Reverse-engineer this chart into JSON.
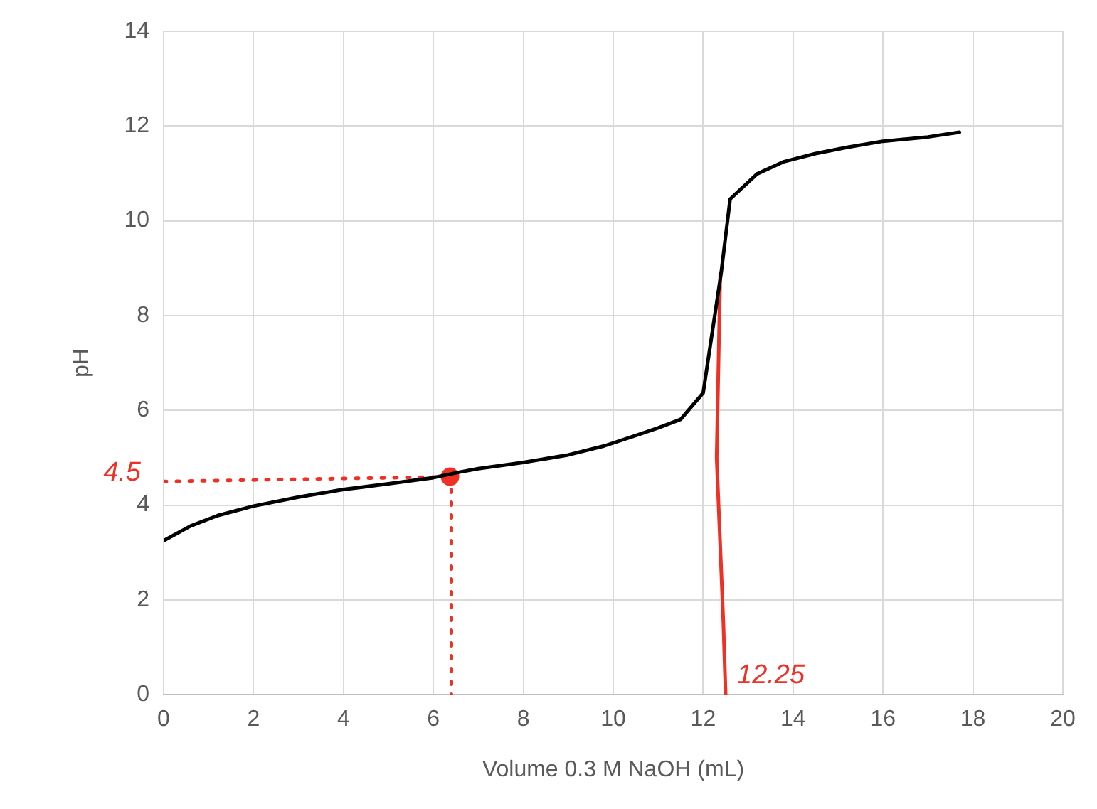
{
  "chart_data": {
    "type": "line",
    "xlabel": "Volume 0.3 M NaOH (mL)",
    "ylabel": "pH",
    "xlim": [
      0,
      20
    ],
    "xticks": [
      0,
      2,
      4,
      6,
      8,
      10,
      12,
      14,
      16,
      18,
      20
    ],
    "ylim": [
      0,
      14
    ],
    "yticks": [
      0,
      2,
      4,
      6,
      8,
      10,
      12,
      14
    ],
    "grid": true,
    "legend": false,
    "series": [
      {
        "type": "line",
        "color": "#000000",
        "line_style": "solid",
        "marker": "none",
        "x": [
          0,
          0.6,
          1.2,
          2,
          3,
          4,
          5,
          6,
          6.6,
          7,
          8,
          9,
          9.8,
          10.5,
          11,
          11.5,
          12,
          12.4,
          12.6,
          13.2,
          13.8,
          14.5,
          15.2,
          16,
          17,
          17.7
        ],
        "values": [
          3.25,
          3.56,
          3.78,
          3.98,
          4.17,
          4.33,
          4.45,
          4.58,
          4.7,
          4.77,
          4.9,
          5.06,
          5.25,
          5.47,
          5.63,
          5.81,
          6.37,
          8.9,
          10.46,
          10.99,
          11.25,
          11.42,
          11.55,
          11.68,
          11.77,
          11.87
        ]
      },
      {
        "type": "line",
        "color": "#ee3124",
        "line_style": "dotted",
        "marker": "none",
        "x": [
          0,
          6.4
        ],
        "values": [
          4.5,
          4.6
        ]
      },
      {
        "type": "line",
        "color": "#ee3124",
        "line_style": "dotted",
        "marker": "none",
        "x": [
          6.4,
          6.4
        ],
        "values": [
          4.6,
          0
        ]
      },
      {
        "type": "line",
        "color": "#ee3124",
        "line_style": "solid",
        "marker": "none",
        "x": [
          12.38,
          12.3,
          12.45,
          12.5
        ],
        "values": [
          8.9,
          5,
          1.5,
          0
        ]
      },
      {
        "type": "scatter",
        "color": "#ee3124",
        "marker": "circle",
        "x": [
          6.37
        ],
        "values": [
          4.6
        ]
      }
    ],
    "annotations": [
      {
        "text": "4.5",
        "x": 0,
        "y": 4.5
      },
      {
        "text": "12.25",
        "x": 12.5,
        "y": 0
      }
    ]
  }
}
